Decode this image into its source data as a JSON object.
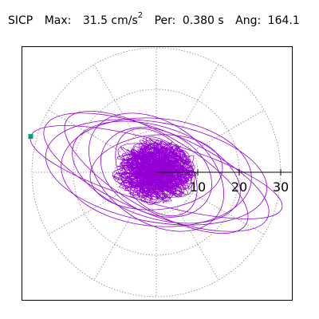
{
  "header": {
    "station": "SICP",
    "max_label": "Max:",
    "max_value": "31.5 cm/s",
    "max_exp": "2",
    "per_label": "Per:",
    "per_value": "0.380 s",
    "ang_label": "Ang:",
    "ang_value": "164.1"
  },
  "colors": {
    "trace": "#9400d3",
    "marker": "#009e73",
    "grid": "#888888",
    "frame": "#000000"
  },
  "chart_data": {
    "type": "line",
    "subtype": "polar-orbit",
    "title": "",
    "radial_ticks": [
      10,
      20,
      30
    ],
    "radial_max": 30,
    "grid_rings": [
      10,
      20,
      30
    ],
    "spoke_angles_deg": [
      0,
      30,
      60,
      90,
      120,
      150,
      180,
      210,
      240,
      270,
      300,
      330
    ],
    "peak": {
      "magnitude": 31.5,
      "angle_deg": 164.1
    },
    "orbit_ellipses": [
      {
        "a": 31.5,
        "b": 7.5,
        "tilt_deg": 164.1
      },
      {
        "a": 29,
        "b": 10,
        "tilt_deg": 158
      },
      {
        "a": 27,
        "b": 12,
        "tilt_deg": 170
      },
      {
        "a": 25,
        "b": 9,
        "tilt_deg": 150
      },
      {
        "a": 23,
        "b": 13,
        "tilt_deg": 175
      },
      {
        "a": 21,
        "b": 11,
        "tilt_deg": 162
      },
      {
        "a": 18,
        "b": 12,
        "tilt_deg": 145
      },
      {
        "a": 16,
        "b": 9,
        "tilt_deg": 185
      },
      {
        "a": 14,
        "b": 10,
        "tilt_deg": 155
      },
      {
        "a": 12,
        "b": 8,
        "tilt_deg": 130
      }
    ]
  }
}
